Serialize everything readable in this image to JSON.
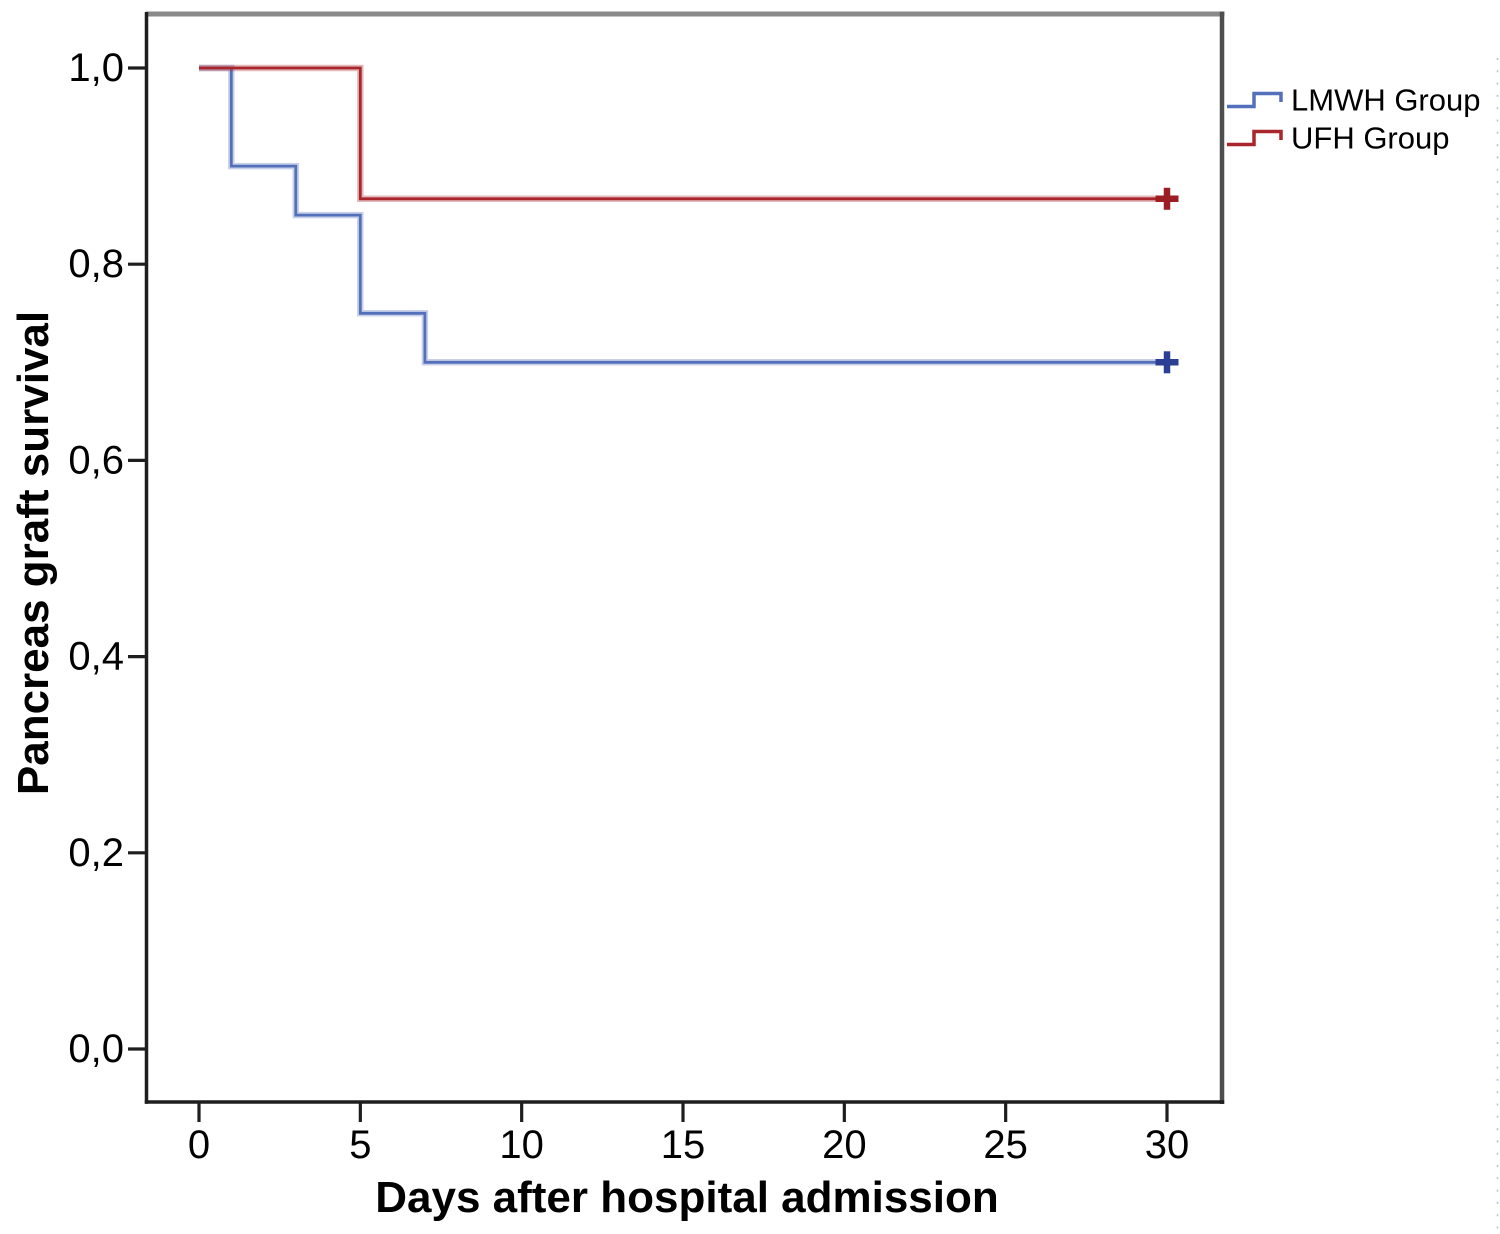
{
  "page": {
    "background": "#ffffff"
  },
  "chart_data": {
    "type": "line",
    "chart_style": "kaplan-meier-step",
    "title": "",
    "xlabel": "Days after hospital admission",
    "ylabel": "Pancreas graft survival",
    "decimal_separator": ",",
    "grid": false,
    "legend_position": "outside-top-right",
    "xlim": [
      -1.6,
      31.8
    ],
    "ylim": [
      -0.055,
      1.055
    ],
    "x_ticks": [
      {
        "v": 0,
        "label": "0"
      },
      {
        "v": 5,
        "label": "5"
      },
      {
        "v": 10,
        "label": "10"
      },
      {
        "v": 15,
        "label": "15"
      },
      {
        "v": 20,
        "label": "20"
      },
      {
        "v": 25,
        "label": "25"
      },
      {
        "v": 30,
        "label": "30"
      }
    ],
    "y_ticks": [
      {
        "v": 0.0,
        "label": "0,0"
      },
      {
        "v": 0.2,
        "label": "0,2"
      },
      {
        "v": 0.4,
        "label": "0,4"
      },
      {
        "v": 0.6,
        "label": "0,6"
      },
      {
        "v": 0.8,
        "label": "0,8"
      },
      {
        "v": 1.0,
        "label": "1,0"
      }
    ],
    "series": [
      {
        "name": "LMWH Group",
        "color": "#5470BA",
        "censor_color": "#2C3F94",
        "step_points": [
          [
            0,
            1.0
          ],
          [
            1,
            0.9
          ],
          [
            3,
            0.85
          ],
          [
            5,
            0.75
          ],
          [
            7,
            0.7
          ]
        ],
        "end_x": 30.3,
        "censored": [
          [
            30,
            0.7
          ]
        ]
      },
      {
        "name": "UFH Group",
        "color": "#A8262C",
        "censor_color": "#9B1E25",
        "step_points": [
          [
            0,
            1.0
          ],
          [
            5,
            0.8667
          ]
        ],
        "end_x": 30.3,
        "censored": [
          [
            30,
            0.8667
          ]
        ]
      }
    ]
  },
  "legend": {
    "items": [
      {
        "label": "LMWH Group",
        "color": "#5470BA"
      },
      {
        "label": "UFH Group",
        "color": "#A8262C"
      }
    ]
  }
}
